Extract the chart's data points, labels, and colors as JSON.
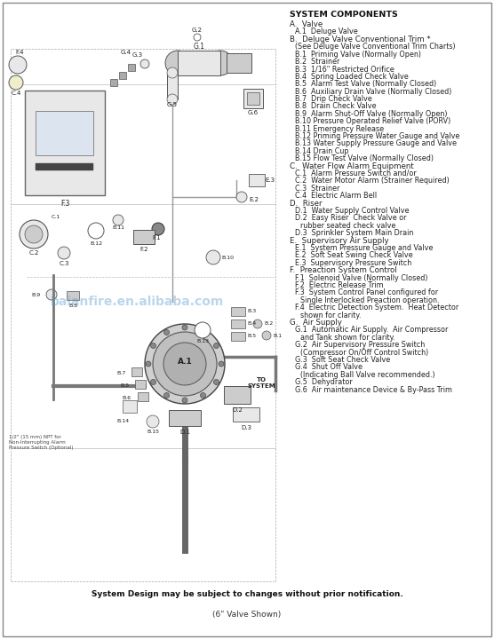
{
  "title": "SYSTEM COMPONENTS",
  "bg_color": "#ffffff",
  "footer1": "System Design may be subject to changes without prior notification.",
  "footer2": "(6\" Valve Shown)",
  "components": [
    {
      "level": 0,
      "text": "A.  Valve"
    },
    {
      "level": 1,
      "text": "A.1  Deluge Valve"
    },
    {
      "level": 0,
      "text": "B.  Deluge Valve Conventional Trim *"
    },
    {
      "level": 1,
      "text": "(See Deluge Valve Conventional Trim Charts)"
    },
    {
      "level": 1,
      "text": "B.1  Priming Valve (Normally Open)"
    },
    {
      "level": 1,
      "text": "B.2  Strainer"
    },
    {
      "level": 1,
      "text": "B.3  1/16\" Restricted Orifice"
    },
    {
      "level": 1,
      "text": "B.4  Spring Loaded Check Valve"
    },
    {
      "level": 1,
      "text": "B.5  Alarm Test Valve (Normally Closed)"
    },
    {
      "level": 1,
      "text": "B.6  Auxiliary Drain Valve (Normally Closed)"
    },
    {
      "level": 1,
      "text": "B.7  Drip Check Valve"
    },
    {
      "level": 1,
      "text": "B.8  Drain Check Valve"
    },
    {
      "level": 1,
      "text": "B.9  Alarm Shut-Off Valve (Normally Open)"
    },
    {
      "level": 1,
      "text": "B.10 Pressure Operated Relief Valve (PORV)"
    },
    {
      "level": 1,
      "text": "B.11 Emergency Release"
    },
    {
      "level": 1,
      "text": "B.12 Priming Pressure Water Gauge and Valve"
    },
    {
      "level": 1,
      "text": "B.13 Water Supply Pressure Gauge and Valve"
    },
    {
      "level": 1,
      "text": "B.14 Drain Cup"
    },
    {
      "level": 1,
      "text": "B.15 Flow Test Valve (Normally Closed)"
    },
    {
      "level": 0,
      "text": "C.  Water Flow Alarm Equipment"
    },
    {
      "level": 1,
      "text": "C.1  Alarm Pressure Switch and/or"
    },
    {
      "level": 1,
      "text": "C.2  Water Motor Alarm (Strainer Required)"
    },
    {
      "level": 1,
      "text": "C.3  Strainer"
    },
    {
      "level": 1,
      "text": "C.4  Electric Alarm Bell"
    },
    {
      "level": 0,
      "text": "D.  Riser"
    },
    {
      "level": 1,
      "text": "D.1  Water Supply Control Valve"
    },
    {
      "level": 1,
      "text": "D.2  Easy Riser  Check Valve or"
    },
    {
      "level": 2,
      "text": "rubber seated check valve"
    },
    {
      "level": 1,
      "text": "D.3  Sprinkler System Main Drain"
    },
    {
      "level": 0,
      "text": "E.  Supervisory Air Supply"
    },
    {
      "level": 1,
      "text": "E.1  System Pressure Gauge and Valve"
    },
    {
      "level": 1,
      "text": "E.2  Soft Seat Swing Check Valve"
    },
    {
      "level": 1,
      "text": "E.3  Supervisory Pressure Switch"
    },
    {
      "level": 0,
      "text": "F.  Preaction System Control"
    },
    {
      "level": 1,
      "text": "F.1  Solenoid Valve (Normally Closed)"
    },
    {
      "level": 1,
      "text": "F.2  Electric Release Trim"
    },
    {
      "level": 1,
      "text": "F.3  System Control Panel configured for"
    },
    {
      "level": 2,
      "text": "Single Interlocked Preaction operation."
    },
    {
      "level": 1,
      "text": "F.4  Electric Detection System.  Heat Detector"
    },
    {
      "level": 2,
      "text": "shown for clarity."
    },
    {
      "level": 0,
      "text": "G.  Air Supply"
    },
    {
      "level": 1,
      "text": "G.1  Automatic Air Supply.  Air Compressor"
    },
    {
      "level": 2,
      "text": "and Tank shown for clarity."
    },
    {
      "level": 1,
      "text": "G.2  Air Supervisory Pressure Switch"
    },
    {
      "level": 2,
      "text": "(Compressor On/Off Control Switch)"
    },
    {
      "level": 1,
      "text": "G.3  Soft Seat Check Valve"
    },
    {
      "level": 1,
      "text": "G.4  Shut Off Valve"
    },
    {
      "level": 2,
      "text": "(Indicating Ball Valve recommended.)"
    },
    {
      "level": 1,
      "text": "G.5  Dehydrator"
    },
    {
      "level": 1,
      "text": "G.6  Air maintenance Device & By-Pass Trim"
    }
  ],
  "watermark": "baianfire.en.alibaba.com",
  "watermark_color": "#5599cc",
  "diagram_line_color": "#555555",
  "diagram_fill_light": "#e8e8e8",
  "diagram_fill_mid": "#cccccc",
  "diagram_fill_dark": "#aaaaaa"
}
